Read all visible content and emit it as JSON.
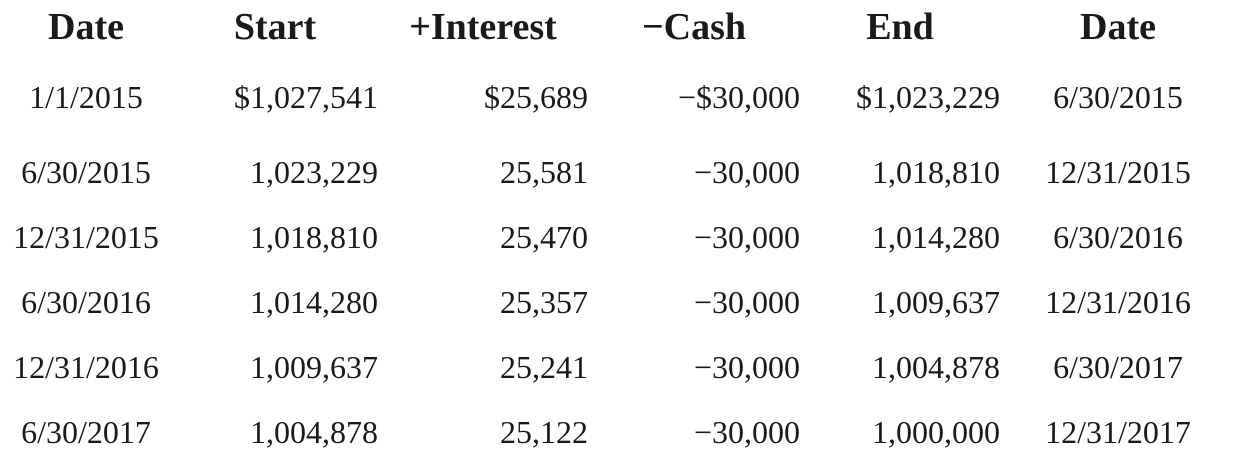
{
  "table": {
    "headers": [
      "Date",
      "Start",
      "+Interest",
      "−Cash",
      "End",
      "Date"
    ],
    "rows": [
      [
        "1/1/2015",
        "$1,027,541",
        "$25,689",
        "−$30,000",
        "$1,023,229",
        "6/30/2015"
      ],
      [
        "6/30/2015",
        "1,023,229",
        "25,581",
        "−30,000",
        "1,018,810",
        "12/31/2015"
      ],
      [
        "12/31/2015",
        "1,018,810",
        "25,470",
        "−30,000",
        "1,014,280",
        "6/30/2016"
      ],
      [
        "6/30/2016",
        "1,014,280",
        "25,357",
        "−30,000",
        "1,009,637",
        "12/31/2016"
      ],
      [
        "12/31/2016",
        "1,009,637",
        "25,241",
        "−30,000",
        "1,004,878",
        "6/30/2017"
      ],
      [
        "6/30/2017",
        "1,004,878",
        "25,122",
        "−30,000",
        "1,000,000",
        "12/31/2017"
      ]
    ]
  }
}
